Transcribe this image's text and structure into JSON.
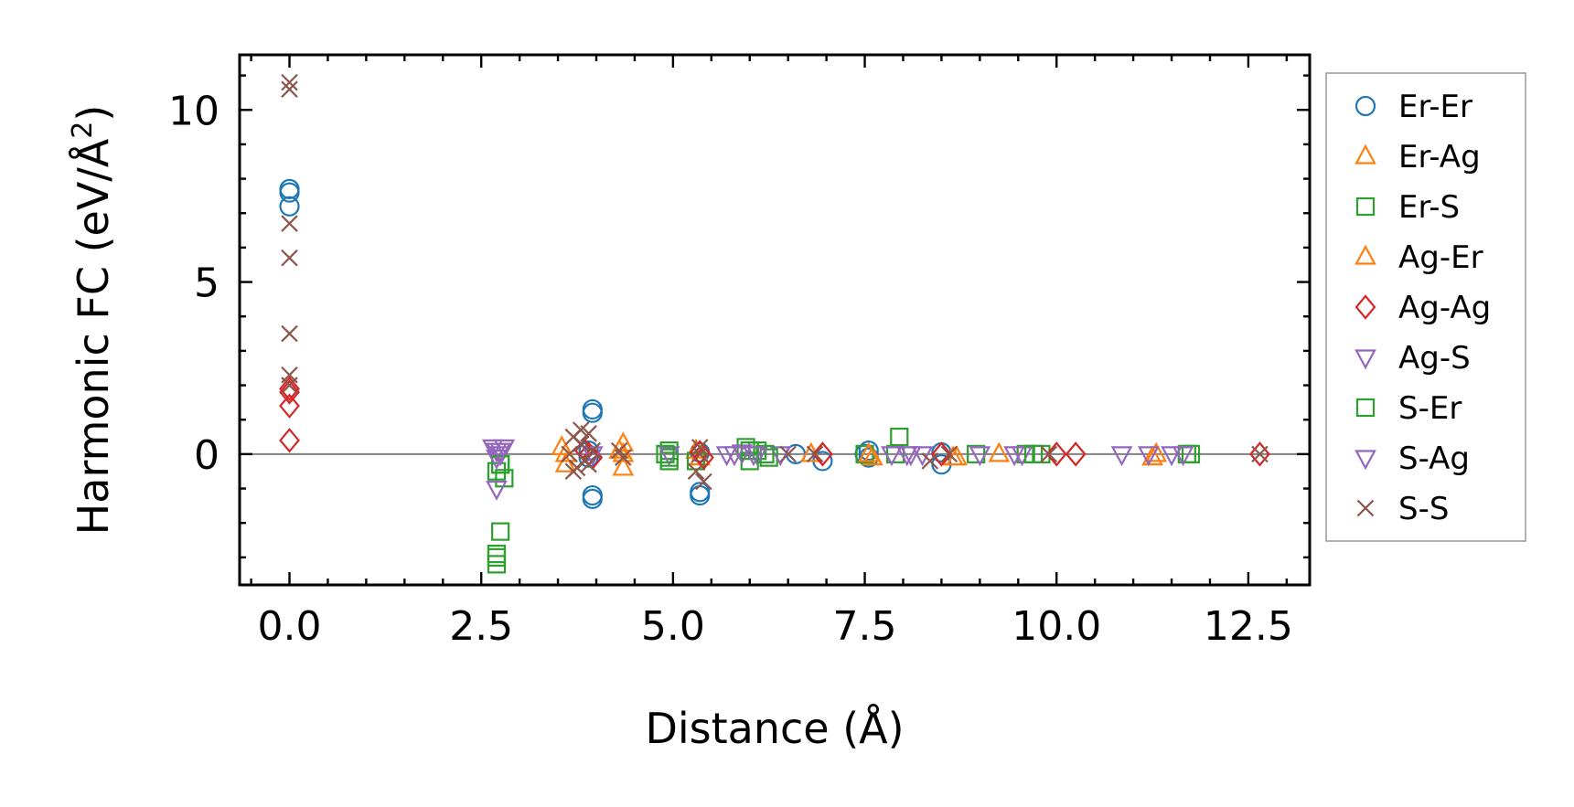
{
  "chart_data": {
    "type": "scatter",
    "title": "",
    "xlabel": "Distance (Å)",
    "ylabel_main": "Harmonic FC (eV/Å",
    "ylabel_sup": "2",
    "ylabel_close": ")",
    "xlim": [
      -0.65,
      13.3
    ],
    "ylim": [
      -3.8,
      11.6
    ],
    "x_ticks": [
      0.0,
      2.5,
      5.0,
      7.5,
      10.0,
      12.5
    ],
    "x_tick_labels": [
      "0.0",
      "2.5",
      "5.0",
      "7.5",
      "10.0",
      "12.5"
    ],
    "y_ticks": [
      0,
      5,
      10
    ],
    "y_tick_labels": [
      "0",
      "5",
      "10"
    ],
    "grid": false,
    "zero_line": true,
    "legend_position": "outside-right",
    "colors": {
      "blue": "#1f77b4",
      "orange": "#ff7f0e",
      "green": "#2ca02c",
      "red": "#d62728",
      "purple": "#9467bd",
      "brown": "#8c564b",
      "zero_line": "#808080"
    },
    "series": [
      {
        "name": "Er-Er",
        "marker": "circle",
        "color": "#1f77b4",
        "x": [
          0,
          0,
          0,
          3.95,
          3.95,
          3.95,
          3.95,
          3.9,
          3.9,
          5.35,
          5.35,
          5.35,
          6.6,
          6.95,
          7.55,
          7.55,
          7.5,
          8.5,
          8.5
        ],
        "y": [
          7.7,
          7.6,
          7.2,
          1.3,
          1.2,
          -1.2,
          -1.3,
          0.1,
          -0.1,
          -1.1,
          -1.2,
          0.05,
          0.0,
          -0.2,
          0.1,
          -0.1,
          0.0,
          -0.3,
          0.05
        ]
      },
      {
        "name": "Er-Ag",
        "marker": "triangle-up",
        "color": "#ff7f0e",
        "x": [
          3.55,
          3.6,
          4.35,
          4.35,
          4.35,
          5.35,
          5.3,
          6.8,
          7.6,
          8.65,
          9.25,
          11.3,
          11.25
        ],
        "y": [
          0.2,
          -0.3,
          0.3,
          -0.4,
          0.0,
          -0.1,
          0.1,
          0.0,
          -0.1,
          -0.1,
          0.0,
          0.0,
          -0.1
        ]
      },
      {
        "name": "Er-S",
        "marker": "square",
        "color": "#2ca02c",
        "x": [
          2.7,
          2.7,
          2.7,
          2.75,
          2.7,
          2.75,
          2.8,
          4.95,
          4.95,
          4.95,
          5.3,
          5.95,
          6.0,
          6.1,
          6.25,
          7.5,
          7.95,
          7.9,
          8.95,
          9.6,
          9.8,
          11.7
        ],
        "y": [
          -3.2,
          -3.0,
          -2.9,
          -2.25,
          -0.5,
          -0.3,
          -0.7,
          0.1,
          -0.1,
          -0.2,
          -0.2,
          0.2,
          -0.2,
          0.1,
          -0.1,
          0.0,
          0.5,
          0.0,
          0.0,
          0.0,
          0.0,
          0.0
        ]
      },
      {
        "name": "Ag-Er",
        "marker": "triangle-up",
        "color": "#ff7f0e",
        "x": [
          3.6,
          4.3,
          7.55,
          8.7
        ],
        "y": [
          0.0,
          0.1,
          0.0,
          -0.1
        ]
      },
      {
        "name": "Ag-Ag",
        "marker": "diamond",
        "color": "#d62728",
        "x": [
          0,
          0,
          0,
          0,
          3.9,
          3.85,
          3.95,
          5.35,
          5.4,
          6.95,
          8.5,
          10.0,
          10.25,
          12.65
        ],
        "y": [
          1.9,
          1.8,
          1.4,
          0.4,
          0.0,
          0.1,
          -0.1,
          0.05,
          -0.1,
          0.0,
          0.0,
          0.0,
          0.0,
          0.0
        ]
      },
      {
        "name": "Ag-S",
        "marker": "triangle-down",
        "color": "#9467bd",
        "x": [
          2.65,
          2.7,
          2.75,
          2.8,
          2.7,
          4.95,
          5.7,
          5.9,
          6.1,
          6.4,
          7.85,
          8.05,
          8.25,
          9.0,
          9.55,
          10.85,
          11.2
        ],
        "y": [
          0.2,
          0.1,
          0.0,
          0.2,
          -1.0,
          0.0,
          0.0,
          0.05,
          0.0,
          0.0,
          0.0,
          0.0,
          0.0,
          0.0,
          0.0,
          0.0,
          0.0
        ]
      },
      {
        "name": "S-Er",
        "marker": "square",
        "color": "#2ca02c",
        "x": [
          2.75,
          4.9,
          6.0,
          6.2,
          9.7,
          11.75
        ],
        "y": [
          -0.3,
          0.0,
          0.1,
          0.0,
          0.0,
          0.0
        ]
      },
      {
        "name": "S-Ag",
        "marker": "triangle-down",
        "color": "#9467bd",
        "x": [
          2.7,
          2.75,
          3.95,
          5.8,
          6.05,
          8.1,
          9.45,
          11.5,
          11.65
        ],
        "y": [
          -0.1,
          0.1,
          0.0,
          0.0,
          0.0,
          0.0,
          0.0,
          0.0,
          0.0
        ]
      },
      {
        "name": "S-S",
        "marker": "x",
        "color": "#8c564b",
        "x": [
          0,
          0,
          0,
          0,
          0,
          0,
          0,
          3.7,
          3.75,
          3.8,
          3.85,
          3.9,
          3.95,
          3.65,
          3.7,
          3.8,
          3.9,
          4.3,
          4.35,
          5.3,
          5.35,
          5.4,
          5.35,
          6.5,
          6.85,
          8.35,
          8.6,
          9.9,
          12.65
        ],
        "y": [
          10.8,
          10.6,
          6.7,
          5.7,
          3.5,
          2.3,
          2.0,
          0.5,
          -0.4,
          0.3,
          -0.2,
          0.6,
          0.1,
          0.0,
          -0.5,
          0.7,
          -0.3,
          0.1,
          -0.1,
          -0.5,
          0.0,
          -0.8,
          0.2,
          0.0,
          0.0,
          -0.2,
          0.0,
          0.0,
          0.0
        ]
      }
    ]
  }
}
